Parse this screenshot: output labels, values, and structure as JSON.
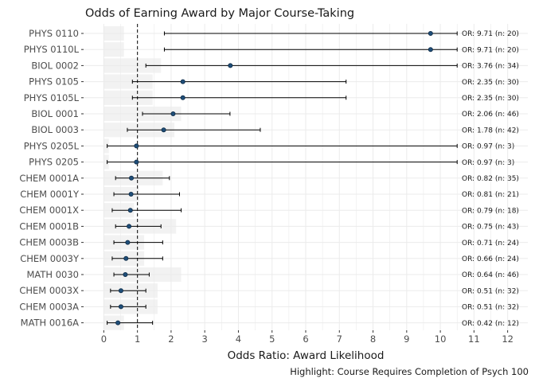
{
  "chart_data": {
    "type": "forest",
    "title": "Odds of Earning Award by Major Course-Taking",
    "xlabel": "Odds Ratio: Award Likelihood",
    "caption": "Highlight: Course Requires Completion of Psych 100",
    "xlim": [
      -0.6,
      12.6
    ],
    "xticks": [
      0,
      1,
      2,
      3,
      4,
      5,
      6,
      7,
      8,
      9,
      10,
      11,
      12
    ],
    "reference_line": 1,
    "grid": true,
    "colors": {
      "point": "#1f4e79",
      "highlight_band": "#f2f2f2",
      "grid": "#ebebeb"
    },
    "rows": [
      {
        "course": "PHYS 0110",
        "or": 9.71,
        "lo": 1.8,
        "hi": 10.5,
        "label": "OR: 9.71 (n: 20)",
        "highlight": 0.6
      },
      {
        "course": "PHYS 0110L",
        "or": 9.71,
        "lo": 1.8,
        "hi": 10.5,
        "label": "OR: 9.71 (n: 20)",
        "highlight": 0.6
      },
      {
        "course": "BIOL 0002",
        "or": 3.76,
        "lo": 1.25,
        "hi": 10.5,
        "label": "OR: 3.76 (n: 34)",
        "highlight": 1.7
      },
      {
        "course": "PHYS 0105",
        "or": 2.35,
        "lo": 0.85,
        "hi": 7.2,
        "label": "OR: 2.35 (n: 30)",
        "highlight": 1.45
      },
      {
        "course": "PHYS 0105L",
        "or": 2.35,
        "lo": 0.85,
        "hi": 7.2,
        "label": "OR: 2.35 (n: 30)",
        "highlight": 1.45
      },
      {
        "course": "BIOL 0001",
        "or": 2.06,
        "lo": 1.15,
        "hi": 3.75,
        "label": "OR: 2.06 (n: 46)",
        "highlight": 2.3
      },
      {
        "course": "BIOL 0003",
        "or": 1.78,
        "lo": 0.7,
        "hi": 4.65,
        "label": "OR: 1.78 (n: 42)",
        "highlight": 2.1
      },
      {
        "course": "PHYS 0205L",
        "or": 0.97,
        "lo": 0.1,
        "hi": 10.5,
        "label": "OR: 0.97 (n: 3)",
        "highlight": 0.15
      },
      {
        "course": "PHYS 0205",
        "or": 0.97,
        "lo": 0.1,
        "hi": 10.5,
        "label": "OR: 0.97 (n: 3)",
        "highlight": 0.15
      },
      {
        "course": "CHEM 0001A",
        "or": 0.82,
        "lo": 0.35,
        "hi": 1.95,
        "label": "OR: 0.82 (n: 35)",
        "highlight": 1.75
      },
      {
        "course": "CHEM 0001Y",
        "or": 0.81,
        "lo": 0.3,
        "hi": 2.25,
        "label": "OR: 0.81 (n: 21)",
        "highlight": 1.05
      },
      {
        "course": "CHEM 0001X",
        "or": 0.79,
        "lo": 0.25,
        "hi": 2.3,
        "label": "OR: 0.79 (n: 18)",
        "highlight": 0.9
      },
      {
        "course": "CHEM 0001B",
        "or": 0.75,
        "lo": 0.35,
        "hi": 1.7,
        "label": "OR: 0.75 (n: 43)",
        "highlight": 2.15
      },
      {
        "course": "CHEM 0003B",
        "or": 0.71,
        "lo": 0.3,
        "hi": 1.75,
        "label": "OR: 0.71 (n: 24)",
        "highlight": 1.2
      },
      {
        "course": "CHEM 0003Y",
        "or": 0.66,
        "lo": 0.25,
        "hi": 1.75,
        "label": "OR: 0.66 (n: 24)",
        "highlight": 1.2
      },
      {
        "course": "MATH 0030",
        "or": 0.64,
        "lo": 0.3,
        "hi": 1.35,
        "label": "OR: 0.64 (n: 46)",
        "highlight": 2.3
      },
      {
        "course": "CHEM 0003X",
        "or": 0.51,
        "lo": 0.2,
        "hi": 1.25,
        "label": "OR: 0.51 (n: 32)",
        "highlight": 1.6
      },
      {
        "course": "CHEM 0003A",
        "or": 0.51,
        "lo": 0.2,
        "hi": 1.25,
        "label": "OR: 0.51 (n: 32)",
        "highlight": 1.6
      },
      {
        "course": "MATH 0016A",
        "or": 0.42,
        "lo": 0.1,
        "hi": 1.45,
        "label": "OR: 0.42 (n: 12)",
        "highlight": 0.6
      }
    ]
  }
}
